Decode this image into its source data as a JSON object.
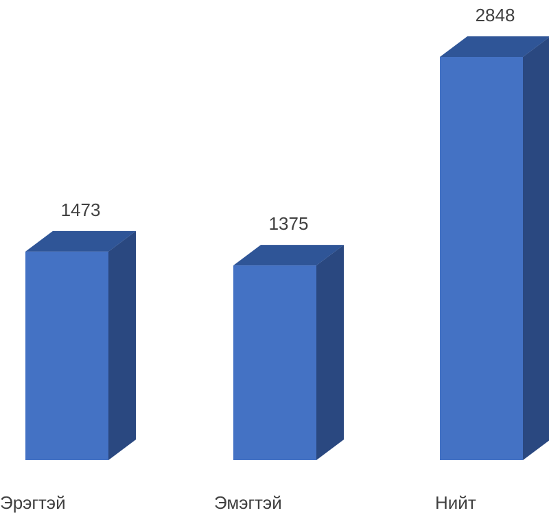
{
  "chart_data": {
    "type": "bar",
    "style": "3d-column",
    "categories": [
      "Эрэгтэй",
      "Эмэгтэй",
      "Нийт"
    ],
    "values": [
      1473,
      1375,
      2848
    ],
    "data_labels": [
      "1473",
      "1375",
      "2848"
    ],
    "title": "",
    "xlabel": "",
    "ylabel": "",
    "ylim": [
      0,
      2848
    ],
    "grid": false,
    "legend": "none",
    "colors": {
      "front": "#4472C4",
      "top": "#2F5597",
      "side": "#2A4880",
      "text": "#404040"
    }
  }
}
